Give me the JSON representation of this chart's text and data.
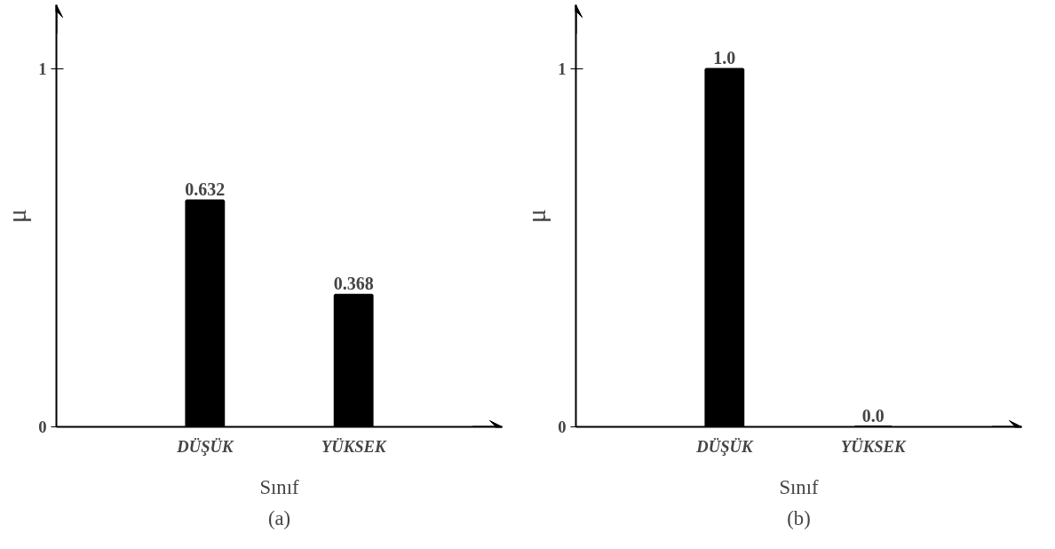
{
  "chart_data": [
    {
      "type": "bar",
      "categories": [
        "DÜŞÜK",
        "YÜKSEK"
      ],
      "values": [
        0.632,
        0.368
      ],
      "color": "#000000",
      "value_labels": [
        "0.632",
        "0.368"
      ],
      "xlabel": "Sınıf",
      "ylabel": "μ",
      "ylim": [
        0,
        1.18
      ],
      "yticks": [
        0,
        1
      ],
      "annotations": [
        "(a)"
      ]
    },
    {
      "type": "bar",
      "categories": [
        "DÜŞÜK",
        "YÜKSEK"
      ],
      "values": [
        1.0,
        0.0
      ],
      "color": "#000000",
      "value_labels": [
        "1.0",
        "0.0"
      ],
      "xlabel": "Sınıf",
      "ylabel": "μ",
      "ylim": [
        0,
        1.18
      ],
      "yticks": [
        0,
        1
      ],
      "annotations": [
        "(b)"
      ]
    }
  ]
}
